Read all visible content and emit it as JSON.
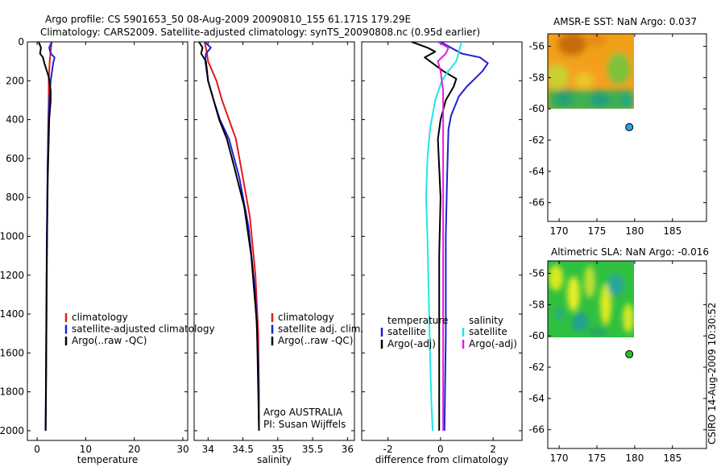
{
  "title": {
    "line1": "Argo profile: CS 5901653_50 08-Aug-2009 20090810_155 61.171S 179.29E",
    "line2": "Climatology: CARS2009. Satellite-adjusted climatology: synTS_20090808.nc (0.95d earlier)"
  },
  "footer": {
    "timestamp": "CSIRO 14-Aug-2009 10:30:52"
  },
  "colors": {
    "red": "#e41a1c",
    "blue": "#1f1fd0",
    "black": "#000000",
    "cyan": "#22e5e5",
    "magenta": "#e020e0"
  },
  "chart_data": [
    {
      "type": "line",
      "xlabel": "temperature",
      "xlim": [
        -2,
        31
      ],
      "ylim": [
        0,
        2050
      ],
      "xticks": [
        0,
        10,
        20,
        30
      ],
      "yticks": [
        0,
        200,
        400,
        600,
        800,
        1000,
        1200,
        1400,
        1600,
        1800,
        2000
      ],
      "legend": {
        "position": "lower-right",
        "entries": [
          {
            "label": "climatology",
            "color": "red"
          },
          {
            "label": "satellite-adjusted climatology",
            "color": "blue"
          },
          {
            "label": "Argo(..raw -QC)",
            "color": "black"
          }
        ]
      },
      "series": [
        {
          "color": "red",
          "x": [
            3.0,
            2.8,
            2.6,
            2.5,
            2.4,
            2.4,
            2.3,
            2.1,
            2.0,
            1.9,
            1.8,
            1.75
          ],
          "y": [
            0,
            50,
            100,
            150,
            200,
            300,
            400,
            800,
            1200,
            1600,
            1900,
            2000
          ]
        },
        {
          "color": "blue",
          "x": [
            3.0,
            2.5,
            2.8,
            3.6,
            3.3,
            2.8,
            2.5,
            2.2,
            2.0,
            1.9,
            1.8,
            1.75
          ],
          "y": [
            0,
            30,
            60,
            80,
            110,
            200,
            300,
            600,
            1000,
            1400,
            1800,
            2000
          ]
        },
        {
          "color": "black",
          "x": [
            0.3,
            0.8,
            0.6,
            1.2,
            1.5,
            2.4,
            2.8,
            2.8,
            2.5,
            2.2,
            2.0,
            1.9,
            1.8,
            1.75
          ],
          "y": [
            0,
            30,
            60,
            80,
            110,
            180,
            250,
            300,
            400,
            700,
            1100,
            1500,
            1900,
            2000
          ]
        }
      ]
    },
    {
      "type": "line",
      "xlabel": "salinity",
      "xlim": [
        33.8,
        36.1
      ],
      "ylim": [
        0,
        2050
      ],
      "xticks": [
        34,
        34.5,
        35,
        35.5,
        36
      ],
      "yticks": [
        0,
        200,
        400,
        600,
        800,
        1000,
        1200,
        1400,
        1600,
        1800,
        2000
      ],
      "annotation": [
        "Argo AUSTRALIA",
        "PI: Susan Wijffels"
      ],
      "legend": {
        "position": "lower-right",
        "entries": [
          {
            "label": "climatology",
            "color": "red"
          },
          {
            "label": "satellite adj. clim.",
            "color": "blue"
          },
          {
            "label": "Argo(..raw -QC)",
            "color": "black"
          }
        ]
      },
      "series": [
        {
          "color": "red",
          "x": [
            33.95,
            33.98,
            34.0,
            34.06,
            34.12,
            34.2,
            34.3,
            34.4,
            34.5,
            34.6,
            34.68,
            34.72,
            34.73,
            34.73
          ],
          "y": [
            0,
            50,
            100,
            150,
            200,
            300,
            400,
            500,
            700,
            900,
            1200,
            1500,
            1800,
            1950
          ]
        },
        {
          "color": "blue",
          "x": [
            33.95,
            34.04,
            33.97,
            33.96,
            34.0,
            34.08,
            34.17,
            34.3,
            34.45,
            34.58,
            34.68,
            34.72,
            34.73
          ],
          "y": [
            0,
            30,
            60,
            100,
            200,
            300,
            400,
            500,
            700,
            950,
            1300,
            1650,
            2000
          ]
        },
        {
          "color": "black",
          "x": [
            33.87,
            33.92,
            33.9,
            33.97,
            34.0,
            34.08,
            34.16,
            34.27,
            34.38,
            34.52,
            34.62,
            34.7,
            34.72,
            34.73
          ],
          "y": [
            0,
            30,
            60,
            100,
            200,
            300,
            400,
            500,
            650,
            850,
            1100,
            1450,
            1800,
            2000
          ]
        }
      ]
    },
    {
      "type": "line",
      "xlabel": "difference from climatology",
      "xlim": [
        -3.0,
        3.1
      ],
      "ylim": [
        0,
        2050
      ],
      "xticks": [
        -2,
        0,
        2
      ],
      "yticks": [
        0,
        200,
        400,
        600,
        800,
        1000,
        1200,
        1400,
        1600,
        1800,
        2000
      ],
      "legend": {
        "position": "lower-center",
        "groups": [
          {
            "heading": "temperature",
            "entries": [
              {
                "label": "satellite",
                "color": "blue"
              },
              {
                "label": "Argo(-adj)",
                "color": "black"
              }
            ]
          },
          {
            "heading": "salinity",
            "entries": [
              {
                "label": "satellite",
                "color": "cyan"
              },
              {
                "label": "Argo(-adj)",
                "color": "magenta"
              }
            ]
          }
        ]
      },
      "series": [
        {
          "color": "blue",
          "x": [
            0.0,
            0.4,
            0.8,
            1.5,
            1.8,
            1.6,
            1.3,
            1.0,
            0.7,
            0.4,
            0.3,
            0.25,
            0.2,
            0.2,
            0.15
          ],
          "y": [
            0,
            30,
            60,
            80,
            110,
            150,
            190,
            230,
            280,
            380,
            450,
            700,
            1000,
            1500,
            2000
          ]
        },
        {
          "color": "black",
          "x": [
            -1.1,
            -0.5,
            -0.2,
            -0.6,
            -0.3,
            0.1,
            0.6,
            0.5,
            0.2,
            0.0,
            -0.1,
            0.0,
            -0.05,
            -0.05,
            -0.05
          ],
          "y": [
            0,
            30,
            50,
            80,
            110,
            150,
            190,
            230,
            300,
            400,
            500,
            800,
            1100,
            1500,
            2000
          ]
        },
        {
          "color": "cyan",
          "x": [
            0.8,
            0.7,
            0.6,
            0.3,
            0.05,
            -0.2,
            -0.4,
            -0.5,
            -0.55,
            -0.5,
            -0.45,
            -0.4,
            -0.35,
            -0.3
          ],
          "y": [
            0,
            50,
            100,
            150,
            200,
            300,
            450,
            600,
            800,
            1000,
            1300,
            1600,
            1850,
            2000
          ]
        },
        {
          "color": "magenta",
          "x": [
            -0.1,
            0.3,
            0.2,
            -0.1,
            0.0,
            0.1,
            0.1,
            0.1,
            0.1,
            0.1,
            0.1
          ],
          "y": [
            0,
            30,
            60,
            100,
            150,
            250,
            400,
            700,
            1100,
            1500,
            2000
          ]
        }
      ]
    },
    {
      "type": "heatmap",
      "title": "AMSR-E SST: NaN Argo: 0.037",
      "xlim": [
        168.5,
        189.5
      ],
      "ylim": [
        -67.2,
        -55.2
      ],
      "xticks": [
        170,
        175,
        180,
        185
      ],
      "yticks": [
        -56,
        -58,
        -60,
        -62,
        -64,
        -66
      ],
      "marker": {
        "lon": 179.29,
        "lat": -61.171,
        "color": "#2aa0e8"
      }
    },
    {
      "type": "heatmap",
      "title": "Altimetric SLA: NaN Argo: -0.016",
      "xlim": [
        168.5,
        189.5
      ],
      "ylim": [
        -67.2,
        -55.2
      ],
      "xticks": [
        170,
        175,
        180,
        185
      ],
      "yticks": [
        -56,
        -58,
        -60,
        -62,
        -64,
        -66
      ],
      "marker": {
        "lon": 179.29,
        "lat": -61.171,
        "color": "#22c22a"
      }
    }
  ]
}
